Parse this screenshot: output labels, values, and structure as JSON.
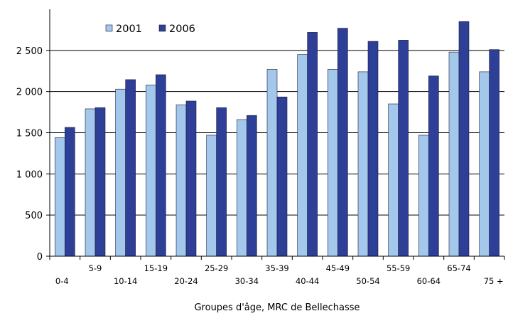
{
  "chart_data": {
    "type": "bar",
    "title": "",
    "xlabel": "Groupes d'âge, MRC de Bellechasse",
    "ylabel": "",
    "categories": [
      "0-4",
      "5-9",
      "10-14",
      "15-19",
      "20-24",
      "25-29",
      "30-34",
      "35-39",
      "40-44",
      "45-49",
      "50-54",
      "55-59",
      "60-64",
      "65-74",
      "75 +"
    ],
    "series": [
      {
        "name": "2001",
        "color": "#a3c8ec",
        "values": [
          1440,
          1790,
          2030,
          2080,
          1840,
          1470,
          1660,
          2270,
          2450,
          2270,
          2240,
          1850,
          1470,
          2480,
          2240
        ]
      },
      {
        "name": "2006",
        "color": "#2e3f97",
        "values": [
          1565,
          1805,
          2145,
          2205,
          1885,
          1805,
          1710,
          1935,
          2720,
          2770,
          2610,
          2625,
          2190,
          2850,
          2510
        ]
      }
    ],
    "ylim": [
      0,
      3000
    ],
    "yticks": [
      0,
      500,
      1000,
      1500,
      2000,
      2500
    ],
    "ytick_labels": [
      "0",
      "500",
      "1 000",
      "1 500",
      "2 000",
      "2 500"
    ],
    "xtick_labels_odd": [
      "5-9",
      "15-19",
      "25-29",
      "35-39",
      "45-49",
      "55-59",
      "65-74"
    ],
    "xtick_labels_even": [
      "0-4",
      "10-14",
      "20-24",
      "30-34",
      "40-44",
      "50-54",
      "60-64",
      "75 +"
    ],
    "grid": "horizontal",
    "legend": "top-left"
  }
}
